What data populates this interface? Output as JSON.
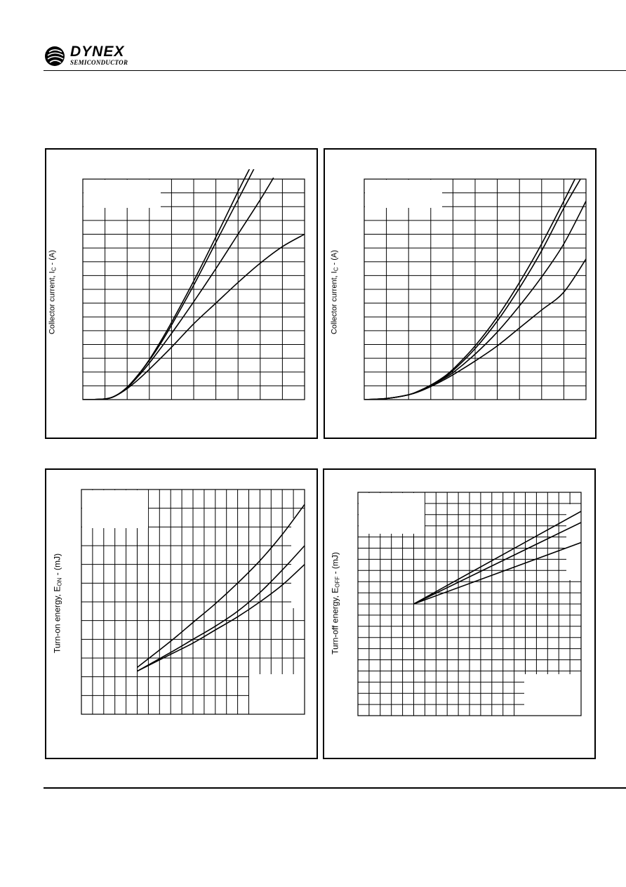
{
  "header": {
    "logo_word": "DYNEX",
    "logo_sub": "SEMICONDUCTOR"
  },
  "charts": {
    "c1": {
      "ylabel_pre": "Collector current, I",
      "ylabel_sub": "C",
      "ylabel_post": " - (A)"
    },
    "c2": {
      "ylabel_pre": "Collector current, I",
      "ylabel_sub": "C",
      "ylabel_post": " - (A)"
    },
    "c3": {
      "ylabel_pre": "Turn-on energy, E",
      "ylabel_sub": "ON",
      "ylabel_post": " - (mJ)"
    },
    "c4": {
      "ylabel_pre": "Turn-off energy, E",
      "ylabel_sub": "OFF",
      "ylabel_post": " - (mJ)"
    }
  },
  "chart_data": [
    {
      "type": "line",
      "ylabel": "Collector current, IC - (A)",
      "xlim": [
        0,
        10
      ],
      "ylim": [
        0,
        16
      ],
      "x_major_divisions": 10,
      "y_major_divisions": 16,
      "grid": true,
      "series": [
        {
          "x": [
            0,
            1,
            1.5,
            2,
            2.5,
            3,
            3.5,
            4,
            5,
            6,
            7,
            7.6
          ],
          "y": [
            0,
            0.05,
            0.3,
            0.9,
            1.8,
            2.9,
            4.2,
            5.6,
            8.6,
            11.8,
            15.1,
            17.0
          ]
        },
        {
          "x": [
            0,
            1,
            1.5,
            2,
            2.5,
            3,
            3.5,
            4,
            5,
            6,
            7,
            7.8
          ],
          "y": [
            0,
            0.05,
            0.3,
            0.9,
            1.8,
            2.85,
            4.05,
            5.4,
            8.3,
            11.4,
            14.5,
            17.0
          ]
        },
        {
          "x": [
            0,
            1,
            1.5,
            2,
            2.5,
            3,
            4,
            5,
            6,
            7,
            8,
            8.6
          ],
          "y": [
            0,
            0.05,
            0.3,
            0.85,
            1.7,
            2.65,
            4.8,
            7.1,
            9.5,
            12.0,
            14.5,
            16.1
          ]
        },
        {
          "x": [
            0,
            1,
            1.5,
            2,
            2.5,
            3,
            4,
            5,
            6,
            7,
            8,
            9,
            10
          ],
          "y": [
            0,
            0.05,
            0.3,
            0.8,
            1.45,
            2.2,
            3.8,
            5.5,
            7.0,
            8.5,
            9.9,
            11.1,
            12.0
          ]
        }
      ]
    },
    {
      "type": "line",
      "ylabel": "Collector current, IC - (A)",
      "xlim": [
        0,
        10
      ],
      "ylim": [
        0,
        16
      ],
      "x_major_divisions": 10,
      "y_major_divisions": 16,
      "grid": true,
      "series": [
        {
          "x": [
            0,
            1,
            2,
            2.5,
            3,
            3.5,
            4,
            5,
            6,
            7,
            8,
            9,
            9.5
          ],
          "y": [
            0,
            0.08,
            0.35,
            0.65,
            1.05,
            1.55,
            2.2,
            3.9,
            6.0,
            8.5,
            11.3,
            14.4,
            16.0
          ]
        },
        {
          "x": [
            0,
            1,
            2,
            2.5,
            3,
            3.5,
            4,
            5,
            6,
            7,
            8,
            9,
            9.75
          ],
          "y": [
            0,
            0.08,
            0.35,
            0.65,
            1.05,
            1.5,
            2.1,
            3.7,
            5.7,
            8.1,
            10.8,
            13.9,
            16.0
          ]
        },
        {
          "x": [
            0,
            1,
            2,
            2.5,
            3,
            3.5,
            4,
            5,
            6,
            7,
            8,
            9,
            10
          ],
          "y": [
            0,
            0.08,
            0.35,
            0.65,
            1.0,
            1.45,
            1.95,
            3.3,
            4.9,
            6.8,
            8.9,
            11.3,
            14.4
          ]
        },
        {
          "x": [
            0,
            1,
            2,
            2.5,
            3,
            3.5,
            4,
            5,
            6,
            7,
            8,
            9,
            10
          ],
          "y": [
            0,
            0.08,
            0.35,
            0.6,
            0.95,
            1.35,
            1.8,
            2.8,
            3.9,
            5.2,
            6.5,
            7.8,
            10.2
          ]
        }
      ]
    },
    {
      "type": "line",
      "ylabel": "Turn-on energy, EON - (mJ)",
      "xlim": [
        0,
        10
      ],
      "ylim": [
        0,
        12
      ],
      "x_major_divisions": 20,
      "y_major_divisions": 12,
      "grid": true,
      "series": [
        {
          "x": [
            2.5,
            4,
            5,
            6,
            7,
            8,
            9,
            10
          ],
          "y": [
            2.5,
            3.9,
            4.9,
            5.9,
            7.0,
            8.2,
            9.6,
            11.2
          ]
        },
        {
          "x": [
            2.5,
            4,
            5,
            6,
            7,
            8,
            9,
            10
          ],
          "y": [
            2.3,
            3.3,
            4.0,
            4.7,
            5.5,
            6.5,
            7.7,
            9.0
          ]
        },
        {
          "x": [
            2.5,
            4,
            5,
            6,
            7,
            8,
            9,
            10
          ],
          "y": [
            2.3,
            3.2,
            3.8,
            4.5,
            5.2,
            6.0,
            6.9,
            8.0
          ]
        }
      ]
    },
    {
      "type": "line",
      "ylabel": "Turn-off energy, EOFF - (mJ)",
      "xlim": [
        0,
        10
      ],
      "ylim": [
        0,
        20
      ],
      "x_major_divisions": 20,
      "y_major_divisions": 20,
      "grid": true,
      "series": [
        {
          "x": [
            2.5,
            10
          ],
          "y": [
            10.0,
            18.3
          ]
        },
        {
          "x": [
            2.5,
            10
          ],
          "y": [
            10.0,
            17.3
          ]
        },
        {
          "x": [
            2.5,
            10
          ],
          "y": [
            10.0,
            15.5
          ]
        }
      ]
    }
  ]
}
